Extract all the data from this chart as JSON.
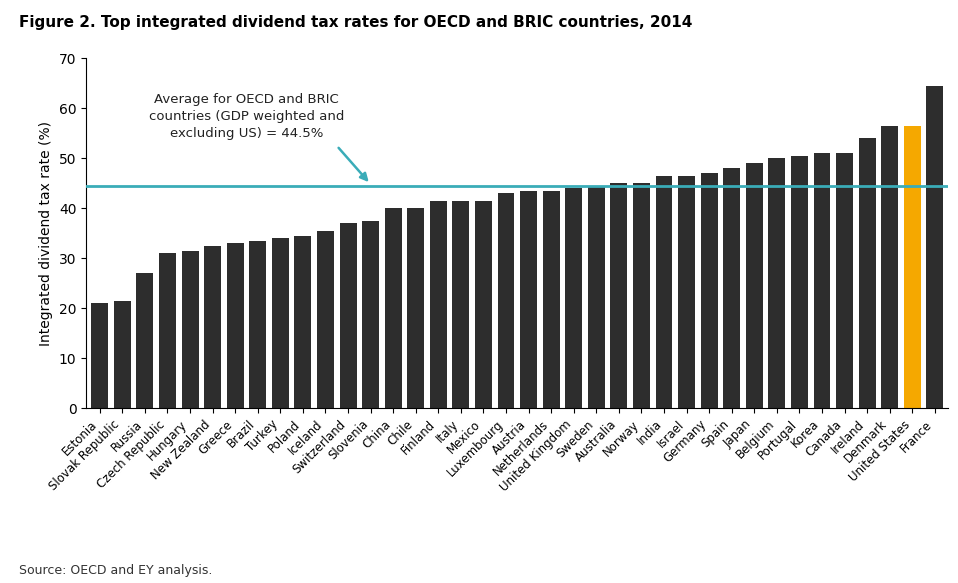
{
  "title": "Figure 2. Top integrated dividend tax rates for OECD and BRIC countries, 2014",
  "ylabel": "Integrated dividend tax rate (%)",
  "source": "Source: OECD and EY analysis.",
  "average_line": 44.5,
  "annotation_text": "Average for OECD and BRIC\ncountries (GDP weighted and\nexcluding US) = 44.5%",
  "countries": [
    "Estonia",
    "Slovak Republic",
    "Russia",
    "Czech Republic",
    "Hungary",
    "New Zealand",
    "Greece",
    "Brazil",
    "Turkey",
    "Poland",
    "Iceland",
    "Switzerland",
    "Slovenia",
    "China",
    "Chile",
    "Finland",
    "Italy",
    "Mexico",
    "Luxembourg",
    "Austria",
    "Netherlands",
    "United Kingdom",
    "Sweden",
    "Australia",
    "Norway",
    "India",
    "Israel",
    "Germany",
    "Spain",
    "Japan",
    "Belgium",
    "Portugal",
    "Korea",
    "Canada",
    "Ireland",
    "Denmark",
    "United States",
    "France"
  ],
  "values": [
    21.0,
    21.5,
    27.0,
    31.0,
    31.5,
    32.5,
    33.0,
    33.5,
    34.0,
    34.5,
    35.5,
    37.0,
    37.5,
    40.0,
    40.0,
    41.5,
    41.5,
    41.5,
    43.0,
    43.5,
    43.5,
    44.0,
    44.5,
    45.0,
    45.0,
    46.5,
    46.5,
    47.0,
    48.0,
    49.0,
    50.0,
    50.5,
    51.0,
    51.0,
    54.0,
    56.5,
    56.5,
    64.5
  ],
  "bar_colors_default": "#2d2d2d",
  "bar_color_us": "#f5a800",
  "us_index": 36,
  "line_color": "#3aacb8",
  "ylim": [
    0,
    70
  ],
  "yticks": [
    0,
    10,
    20,
    30,
    40,
    50,
    60,
    70
  ]
}
